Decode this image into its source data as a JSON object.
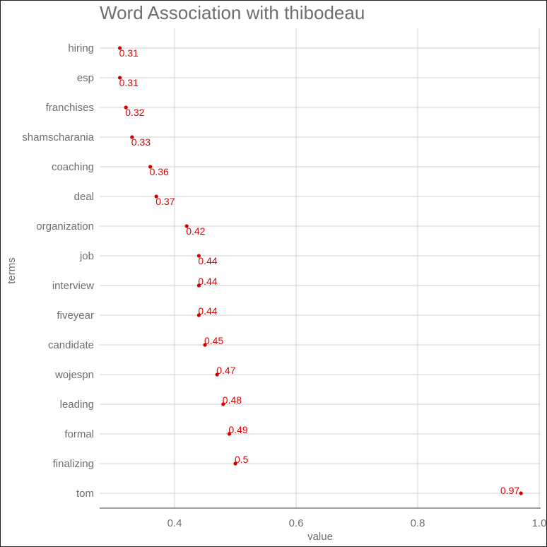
{
  "chart_data": {
    "type": "scatter",
    "title": "Word Association with thibodeau",
    "xlabel": "value",
    "ylabel": "terms",
    "xlim": [
      0.28,
      1.0
    ],
    "x_ticks": [
      0.4,
      0.6,
      0.8,
      1.0
    ],
    "x_tick_labels": [
      "0.4",
      "0.6",
      "0.8",
      "1.0"
    ],
    "grid": true,
    "legend": "none",
    "point_color": "#cc0000",
    "label_color": "#e00000",
    "text_color": "#6e6e6e",
    "grid_color": "#d0d0d0",
    "categories": [
      "hiring",
      "esp",
      "franchises",
      "shamscharania",
      "coaching",
      "deal",
      "organization",
      "job",
      "interview",
      "fiveyear",
      "candidate",
      "wojespn",
      "leading",
      "formal",
      "finalizing",
      "tom"
    ],
    "values": [
      0.31,
      0.31,
      0.32,
      0.33,
      0.36,
      0.37,
      0.42,
      0.44,
      0.44,
      0.44,
      0.45,
      0.47,
      0.48,
      0.49,
      0.5,
      0.97
    ],
    "data_labels": [
      "0.31",
      "0.31",
      "0.32",
      "0.33",
      "0.36",
      "0.37",
      "0.42",
      "0.44",
      "0.44",
      "0.44",
      "0.45",
      "0.47",
      "0.48",
      "0.49",
      "0.5",
      "0.97"
    ]
  }
}
